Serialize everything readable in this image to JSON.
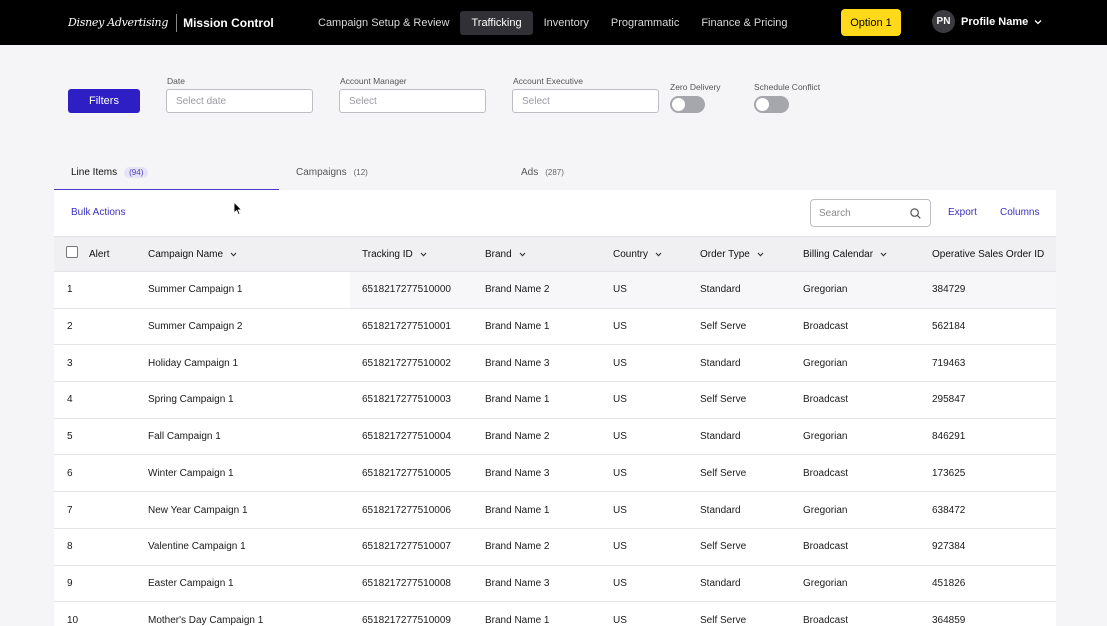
{
  "brand": {
    "logo": "Disney Advertising",
    "app": "Mission Control"
  },
  "nav": {
    "items": [
      {
        "label": "Campaign Setup & Review"
      },
      {
        "label": "Trafficking"
      },
      {
        "label": "Inventory"
      },
      {
        "label": "Programmatic"
      },
      {
        "label": "Finance & Pricing"
      }
    ],
    "active_index": 1,
    "option_button": "Option 1",
    "profile": {
      "initials": "PN",
      "name": "Profile Name"
    }
  },
  "filters": {
    "button": "Filters",
    "date": {
      "label": "Date",
      "placeholder": "Select date"
    },
    "account_manager": {
      "label": "Account Manager",
      "placeholder": "Select"
    },
    "account_executive": {
      "label": "Account Executive",
      "placeholder": "Select"
    },
    "zero_delivery": {
      "label": "Zero Delivery",
      "on": false
    },
    "schedule_conflict": {
      "label": "Schedule Conflict",
      "on": false
    }
  },
  "tabs": [
    {
      "label": "Line Items",
      "count": "(94)"
    },
    {
      "label": "Campaigns",
      "count": "(12)"
    },
    {
      "label": "Ads",
      "count": "(287)"
    }
  ],
  "toolbar": {
    "bulk_actions": "Bulk Actions",
    "search_placeholder": "Search",
    "export": "Export",
    "columns": "Columns"
  },
  "table": {
    "headers": [
      "Alert",
      "Campaign Name",
      "Tracking ID",
      "Brand",
      "Country",
      "Order Type",
      "Billing Calendar",
      "Operative Sales Order ID"
    ],
    "rows": [
      [
        "1",
        "Summer Campaign 1",
        "6518217277510000",
        "Brand Name 2",
        "US",
        "Standard",
        "Gregorian",
        "384729"
      ],
      [
        "2",
        "Summer Campaign 2",
        "6518217277510001",
        "Brand Name 1",
        "US",
        "Self Serve",
        "Broadcast",
        "562184"
      ],
      [
        "3",
        "Holiday Campaign 1",
        "6518217277510002",
        "Brand Name 3",
        "US",
        "Standard",
        "Gregorian",
        "719463"
      ],
      [
        "4",
        "Spring Campaign 1",
        "6518217277510003",
        "Brand Name 1",
        "US",
        "Self Serve",
        "Broadcast",
        "295847"
      ],
      [
        "5",
        "Fall Campaign 1",
        "6518217277510004",
        "Brand Name 2",
        "US",
        "Standard",
        "Gregorian",
        "846291"
      ],
      [
        "6",
        "Winter Campaign 1",
        "6518217277510005",
        "Brand Name 3",
        "US",
        "Self Serve",
        "Broadcast",
        "173625"
      ],
      [
        "7",
        "New Year Campaign 1",
        "6518217277510006",
        "Brand Name 1",
        "US",
        "Standard",
        "Gregorian",
        "638472"
      ],
      [
        "8",
        "Valentine Campaign 1",
        "6518217277510007",
        "Brand Name 2",
        "US",
        "Self Serve",
        "Broadcast",
        "927384"
      ],
      [
        "9",
        "Easter Campaign 1",
        "6518217277510008",
        "Brand Name 3",
        "US",
        "Standard",
        "Gregorian",
        "451826"
      ],
      [
        "10",
        "Mother's Day Campaign 1",
        "6518217277510009",
        "Brand Name 1",
        "US",
        "Self Serve",
        "Broadcast",
        "364859"
      ]
    ]
  },
  "colors": {
    "accent": "#2e1fc4",
    "option": "#ffd91a",
    "nav_bg": "#000000"
  }
}
